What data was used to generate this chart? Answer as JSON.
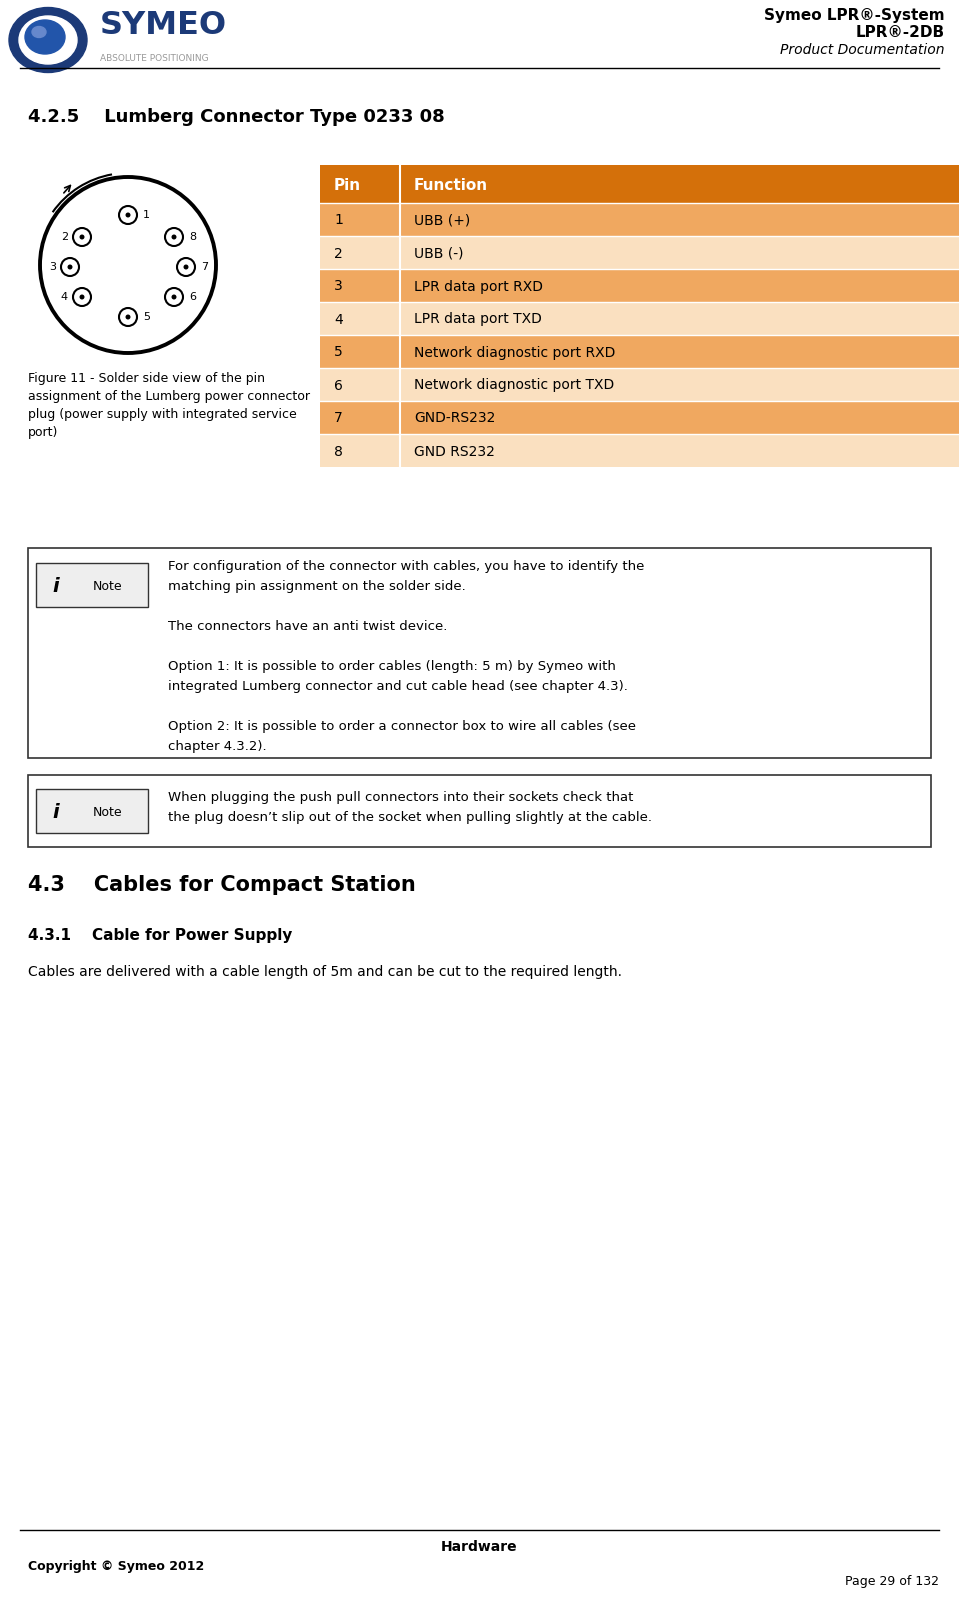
{
  "header_title_line1": "Symeo LPR®-System",
  "header_title_line2": "LPR®-2DB",
  "header_subtitle": "Product Documentation",
  "section_title": "4.2.5    Lumberg Connector Type 0233 08",
  "table_header": [
    "Pin",
    "Function"
  ],
  "table_rows": [
    [
      "1",
      "UBB (+)"
    ],
    [
      "2",
      "UBB (-)"
    ],
    [
      "3",
      "LPR data port RXD"
    ],
    [
      "4",
      "LPR data port TXD"
    ],
    [
      "5",
      "Network diagnostic port RXD"
    ],
    [
      "6",
      "Network diagnostic port TXD"
    ],
    [
      "7",
      "GND-RS232"
    ],
    [
      "8",
      "GND RS232"
    ]
  ],
  "table_header_color": "#D4700A",
  "table_row_odd_color": "#F0A860",
  "table_row_even_color": "#FAE0C0",
  "note1_lines": [
    "For configuration of the connector with cables, you have to identify the",
    "matching pin assignment on the solder side.",
    "",
    "The connectors have an anti twist device.",
    "",
    "Option 1: It is possible to order cables (length: 5 m) by Symeo with",
    "integrated Lumberg connector and cut cable head (see chapter 4.3).",
    "",
    "Option 2: It is possible to order a connector box to wire all cables (see",
    "chapter 4.3.2)."
  ],
  "note2_line1": "When plugging the push pull connectors into their sockets check that",
  "note2_line2": "the plug doesn’t slip out of the socket when pulling slightly at the cable.",
  "note_border_color": "#333333",
  "section43_title": "4.3    Cables for Compact Station",
  "section431_title": "4.3.1    Cable for Power Supply",
  "section431_text": "Cables are delivered with a cable length of 5m and can be cut to the required length.",
  "footer_center": "Hardware",
  "footer_left": "Copyright © Symeo 2012",
  "footer_right": "Page 29 of 132",
  "background_color": "#FFFFFF"
}
